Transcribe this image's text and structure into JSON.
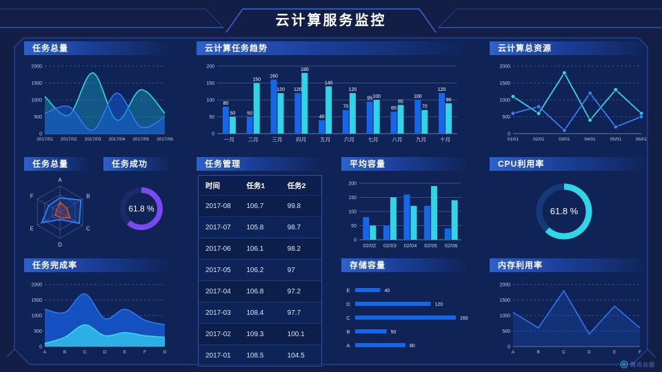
{
  "title": "云计算服务监控",
  "brand": {
    "logo_text": "腾讯云图"
  },
  "colors": {
    "background": "#131e47",
    "panel_inner": "#0f2356",
    "header_gradient_start": "#2e61cc",
    "blue_series": "#1667e8",
    "cyan_series": "#30d4e6",
    "line_blue": "#2f79f2",
    "line_cyan": "#2fe0dc",
    "purple_accent": "#7a4af0",
    "frame_line": "#2b55b2",
    "axis_text": "#c2cde4"
  },
  "panels": {
    "tasks_total_trend": {
      "title": "任务总量"
    },
    "cloud_task_trend": {
      "title": "云计算任务趋势"
    },
    "cloud_total_resources": {
      "title": "云计算总资源"
    },
    "tasks_total_radar": {
      "title": "任务总量"
    },
    "task_success": {
      "title": "任务成功"
    },
    "task_management": {
      "title": "任务管理"
    },
    "avg_capacity": {
      "title": "平均容量"
    },
    "cpu_usage": {
      "title": "CPU利用率"
    },
    "task_completion": {
      "title": "任务完成率"
    },
    "storage_capacity": {
      "title": "存储容量"
    },
    "memory_usage": {
      "title": "内存利用率"
    }
  },
  "chart_data": [
    {
      "id": "tasks_total_area",
      "type": "area",
      "title": "任务总量",
      "smooth": true,
      "x": [
        "2017/01",
        "2017/02",
        "2017/03",
        "2017/04",
        "2017/05",
        "2017/06"
      ],
      "ylim": [
        0,
        2000
      ],
      "yticks": [
        0,
        500,
        1000,
        1500,
        2000
      ],
      "grid": "dashed",
      "series": [
        {
          "name": "series-cyan",
          "color": "#2fe0dc",
          "fill": "rgba(23,150,190,0.45)",
          "values": [
            1100,
            550,
            1800,
            400,
            1300,
            600
          ]
        },
        {
          "name": "series-blue",
          "color": "#2f79f2",
          "fill": "rgba(22,90,210,0.55)",
          "values": [
            600,
            800,
            100,
            1200,
            200,
            500
          ]
        }
      ]
    },
    {
      "id": "cloud_task_trend_bars",
      "type": "bar",
      "title": "云计算任务趋势",
      "categories": [
        "一月",
        "二月",
        "三月",
        "四月",
        "五月",
        "六月",
        "七月",
        "八月",
        "九月",
        "十月"
      ],
      "ylim": [
        0,
        200
      ],
      "yticks": [
        0,
        50,
        100,
        150,
        200
      ],
      "grid": "solid",
      "value_labels": true,
      "series": [
        {
          "name": "任务1",
          "color": "#1667e8",
          "values": [
            80,
            50,
            160,
            120,
            40,
            70,
            95,
            65,
            100,
            120
          ]
        },
        {
          "name": "任务2",
          "color": "#30d4e6",
          "values": [
            50,
            150,
            120,
            180,
            140,
            120,
            100,
            85,
            70,
            90
          ]
        }
      ]
    },
    {
      "id": "cloud_total_resources_line",
      "type": "line",
      "title": "云计算总资源",
      "markers": true,
      "x": [
        "01/01",
        "02/01",
        "03/01",
        "04/01",
        "05/01",
        "06/01"
      ],
      "ylim": [
        0,
        2000
      ],
      "yticks": [
        0,
        500,
        1000,
        1500,
        2000
      ],
      "grid": "dashed",
      "series": [
        {
          "name": "series-cyan",
          "color": "#2fd8e0",
          "values": [
            1100,
            600,
            1800,
            400,
            1300,
            600
          ]
        },
        {
          "name": "series-blue",
          "color": "#3d7bf0",
          "values": [
            600,
            800,
            100,
            1200,
            200,
            500
          ]
        }
      ]
    },
    {
      "id": "tasks_radar",
      "type": "radar",
      "title": "任务总量",
      "axes": [
        "A",
        "B",
        "C",
        "D",
        "E",
        "F"
      ],
      "max": 1,
      "series": [
        {
          "name": "series-blue",
          "color": "#2f7bf0",
          "fill": "rgba(47,123,240,0.18)",
          "values": [
            0.55,
            0.92,
            0.85,
            0.28,
            0.8,
            0.5
          ]
        },
        {
          "name": "series-red",
          "color": "#e8472e",
          "fill": "rgba(232,69,47,0.22)",
          "values": [
            0.38,
            0.3,
            0.45,
            0.2,
            0.22,
            0.15
          ]
        }
      ]
    },
    {
      "id": "task_success_donut",
      "type": "donut",
      "title": "任务成功",
      "value": 61.8,
      "label": "61.8 %",
      "color": "#7a4af0",
      "track": "#1d2a6a"
    },
    {
      "id": "task_table",
      "type": "table",
      "title": "任务管理",
      "headers": [
        "时间",
        "任务1",
        "任务2"
      ],
      "rows": [
        [
          "2017-08",
          "106.7",
          "99.8"
        ],
        [
          "2017-07",
          "105.8",
          "98.7"
        ],
        [
          "2017-06",
          "106.1",
          "98.2"
        ],
        [
          "2017-05",
          "106.2",
          "97"
        ],
        [
          "2017-04",
          "106.8",
          "97.2"
        ],
        [
          "2017-03",
          "108.4",
          "97.7"
        ],
        [
          "2017-02",
          "109.3",
          "100.1"
        ],
        [
          "2017-01",
          "108.5",
          "104.5"
        ]
      ]
    },
    {
      "id": "avg_capacity_bars",
      "type": "bar",
      "title": "平均容量",
      "categories": [
        "02/02",
        "02/03",
        "02/04",
        "02/05",
        "02/06"
      ],
      "ylim": [
        0,
        200
      ],
      "yticks": [
        0,
        50,
        100,
        150,
        200
      ],
      "grid": "solid",
      "value_labels": false,
      "series": [
        {
          "name": "series-blue",
          "color": "#1667e8",
          "values": [
            80,
            50,
            160,
            120,
            40
          ]
        },
        {
          "name": "series-cyan",
          "color": "#30d4e6",
          "values": [
            50,
            150,
            120,
            190,
            140
          ]
        }
      ]
    },
    {
      "id": "cpu_usage_donut",
      "type": "donut",
      "title": "CPU利用率",
      "value": 61.8,
      "label": "61.8 %",
      "color": "#2fd6e8",
      "track": "#153a7a"
    },
    {
      "id": "task_completion_area",
      "type": "area",
      "title": "任务完成率",
      "smooth": true,
      "x": [
        "A",
        "B",
        "C",
        "D",
        "E",
        "F",
        "G"
      ],
      "ylim": [
        0,
        2000
      ],
      "yticks": [
        0,
        500,
        1000,
        1500,
        2000
      ],
      "grid": "dashed",
      "series": [
        {
          "name": "series-blue",
          "color": "#2f7bf0",
          "fill": "rgba(21,85,200,0.92)",
          "values": [
            1200,
            1100,
            1700,
            900,
            1200,
            850,
            700
          ]
        },
        {
          "name": "series-cyan",
          "color": "#45d4f2",
          "fill": "rgba(44,180,230,0.95)",
          "values": [
            100,
            300,
            700,
            350,
            450,
            350,
            300
          ]
        }
      ]
    },
    {
      "id": "storage_hbars",
      "type": "hbar",
      "title": "存储容量",
      "categories": [
        "E",
        "D",
        "C",
        "B",
        "A"
      ],
      "values": [
        40,
        120,
        160,
        50,
        80
      ],
      "xmax": 160,
      "color": "#1667e8"
    },
    {
      "id": "memory_line",
      "type": "line",
      "title": "内存利用率",
      "markers": false,
      "x": [
        "A",
        "B",
        "C",
        "D",
        "E",
        "F"
      ],
      "ylim": [
        0,
        2000
      ],
      "yticks": [
        0,
        500,
        1000,
        1500,
        2000
      ],
      "grid": "dashed",
      "series": [
        {
          "name": "series-blue",
          "color": "#2e6fe8",
          "fill": "rgba(28,80,190,0.32)",
          "values": [
            1100,
            600,
            1800,
            400,
            1300,
            600
          ]
        }
      ]
    }
  ]
}
